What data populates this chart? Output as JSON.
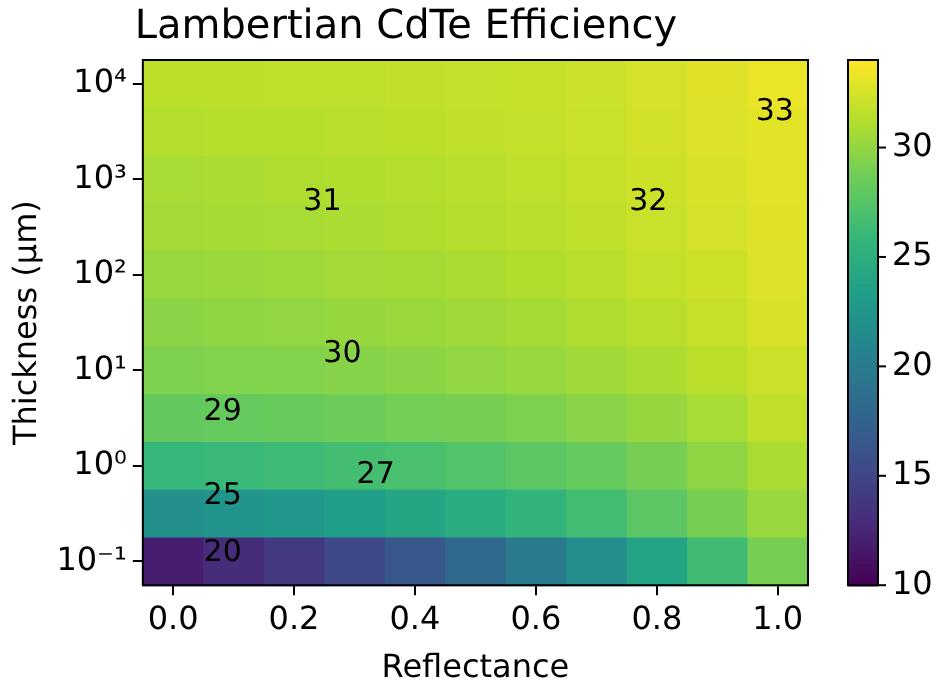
{
  "chart_data": {
    "type": "heatmap",
    "title": "Lambertian CdTe Efficiency",
    "xlabel": "Reflectance",
    "ylabel": "Thickness (µm)",
    "categories": [
      "0.0",
      null,
      "0.2",
      null,
      "0.4",
      null,
      "0.6",
      null,
      "0.8",
      null,
      "1.0"
    ],
    "y_categories": [
      "10⁴",
      null,
      "10³",
      null,
      "10²",
      null,
      "10¹",
      null,
      "10⁰",
      null,
      "10⁻¹"
    ],
    "cells": [
      [
        31.6,
        31.6,
        31.7,
        31.7,
        31.8,
        31.9,
        32.0,
        32.2,
        32.5,
        32.9,
        33.3
      ],
      [
        31.3,
        31.4,
        31.4,
        31.5,
        31.6,
        31.8,
        31.9,
        32.1,
        32.4,
        32.8,
        33.1
      ],
      [
        30.9,
        31.0,
        31.1,
        31.2,
        31.3,
        31.5,
        31.7,
        32.0,
        32.3,
        32.6,
        33.0
      ],
      [
        30.7,
        30.8,
        30.9,
        31.0,
        31.1,
        31.3,
        31.5,
        31.8,
        32.1,
        32.5,
        32.9
      ],
      [
        30.3,
        30.4,
        30.5,
        30.7,
        30.8,
        31.0,
        31.2,
        31.5,
        31.9,
        32.3,
        32.8
      ],
      [
        29.8,
        29.9,
        30.0,
        30.2,
        30.4,
        30.6,
        30.8,
        31.1,
        31.5,
        32.0,
        32.6
      ],
      [
        29.3,
        29.4,
        29.5,
        29.6,
        29.8,
        30.0,
        30.3,
        30.6,
        31.0,
        31.6,
        32.2
      ],
      [
        28.2,
        28.3,
        28.4,
        28.6,
        28.8,
        29.0,
        29.3,
        29.7,
        30.2,
        30.9,
        31.8
      ],
      [
        26.0,
        26.2,
        26.4,
        26.7,
        27.0,
        27.4,
        27.8,
        28.3,
        29.0,
        29.9,
        31.0
      ],
      [
        22.0,
        22.4,
        22.9,
        23.5,
        24.1,
        24.8,
        25.6,
        26.6,
        27.8,
        29.0,
        30.3
      ],
      [
        12.0,
        13.0,
        14.0,
        15.2,
        16.5,
        18.0,
        19.8,
        21.8,
        24.0,
        26.5,
        29.0
      ]
    ],
    "clim": [
      10,
      34
    ],
    "cticks": [
      10,
      15,
      20,
      25,
      30
    ],
    "annotations": [
      "31",
      "32",
      "33",
      "30",
      "29",
      "27",
      "25",
      "20"
    ]
  }
}
